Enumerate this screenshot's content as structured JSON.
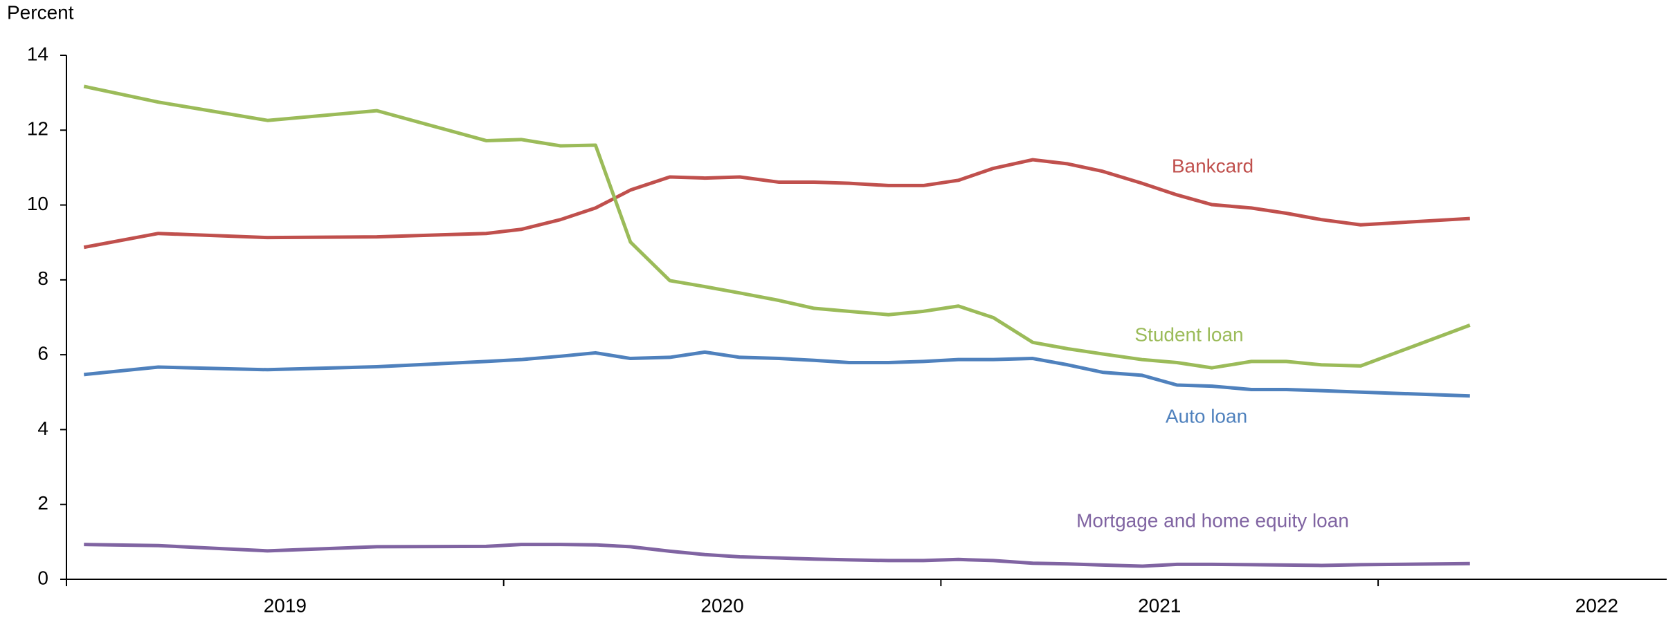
{
  "chart_data": {
    "type": "line",
    "ylabel": "Percent",
    "x": [
      2019.04,
      2019.21,
      2019.46,
      2019.71,
      2019.96,
      2020.04,
      2020.13,
      2020.21,
      2020.29,
      2020.38,
      2020.46,
      2020.54,
      2020.63,
      2020.71,
      2020.79,
      2020.88,
      2020.96,
      2021.04,
      2021.12,
      2021.21,
      2021.29,
      2021.37,
      2021.46,
      2021.54,
      2021.62,
      2021.71,
      2021.79,
      2021.87,
      2021.96,
      2022.21
    ],
    "series": [
      {
        "name": "Bankcard",
        "color": "#c0504d",
        "values": [
          8.87,
          9.24,
          9.13,
          9.15,
          9.24,
          9.35,
          9.61,
          9.92,
          10.4,
          10.75,
          10.72,
          10.75,
          10.61,
          10.61,
          10.58,
          10.52,
          10.52,
          10.66,
          10.98,
          11.21,
          11.1,
          10.9,
          10.58,
          10.27,
          10.01,
          9.92,
          9.78,
          9.61,
          9.47,
          9.64
        ]
      },
      {
        "name": "Student loan",
        "color": "#9bbb59",
        "values": [
          13.17,
          12.75,
          12.26,
          12.52,
          11.72,
          11.75,
          11.58,
          11.6,
          9.01,
          7.98,
          7.82,
          7.65,
          7.45,
          7.24,
          7.16,
          7.07,
          7.16,
          7.3,
          6.99,
          6.33,
          6.16,
          6.02,
          5.87,
          5.79,
          5.65,
          5.82,
          5.82,
          5.73,
          5.7,
          6.79
        ]
      },
      {
        "name": "Auto loan",
        "color": "#4f81bd",
        "values": [
          5.47,
          5.67,
          5.6,
          5.68,
          5.82,
          5.87,
          5.96,
          6.05,
          5.9,
          5.93,
          6.07,
          5.93,
          5.9,
          5.85,
          5.79,
          5.79,
          5.82,
          5.87,
          5.87,
          5.9,
          5.73,
          5.53,
          5.45,
          5.19,
          5.16,
          5.07,
          5.07,
          5.04,
          5.0,
          4.9
        ]
      },
      {
        "name": "Mortgage and home equity loan",
        "color": "#8064a2",
        "values": [
          0.93,
          0.9,
          0.76,
          0.87,
          0.88,
          0.93,
          0.93,
          0.92,
          0.87,
          0.75,
          0.66,
          0.6,
          0.57,
          0.54,
          0.52,
          0.5,
          0.5,
          0.53,
          0.5,
          0.43,
          0.41,
          0.38,
          0.35,
          0.4,
          0.4,
          0.39,
          0.38,
          0.37,
          0.39,
          0.42
        ]
      }
    ],
    "xlim": [
      2019,
      2022.66
    ],
    "xticks": [
      {
        "value": 2019.5,
        "label": "2019"
      },
      {
        "value": 2020.5,
        "label": "2020"
      },
      {
        "value": 2021.5,
        "label": "2021"
      },
      {
        "value": 2022.5,
        "label": "2022"
      }
    ],
    "ylim": [
      0,
      14
    ],
    "yticks": [
      0,
      2,
      4,
      6,
      8,
      10,
      12,
      14
    ],
    "grid": false
  }
}
